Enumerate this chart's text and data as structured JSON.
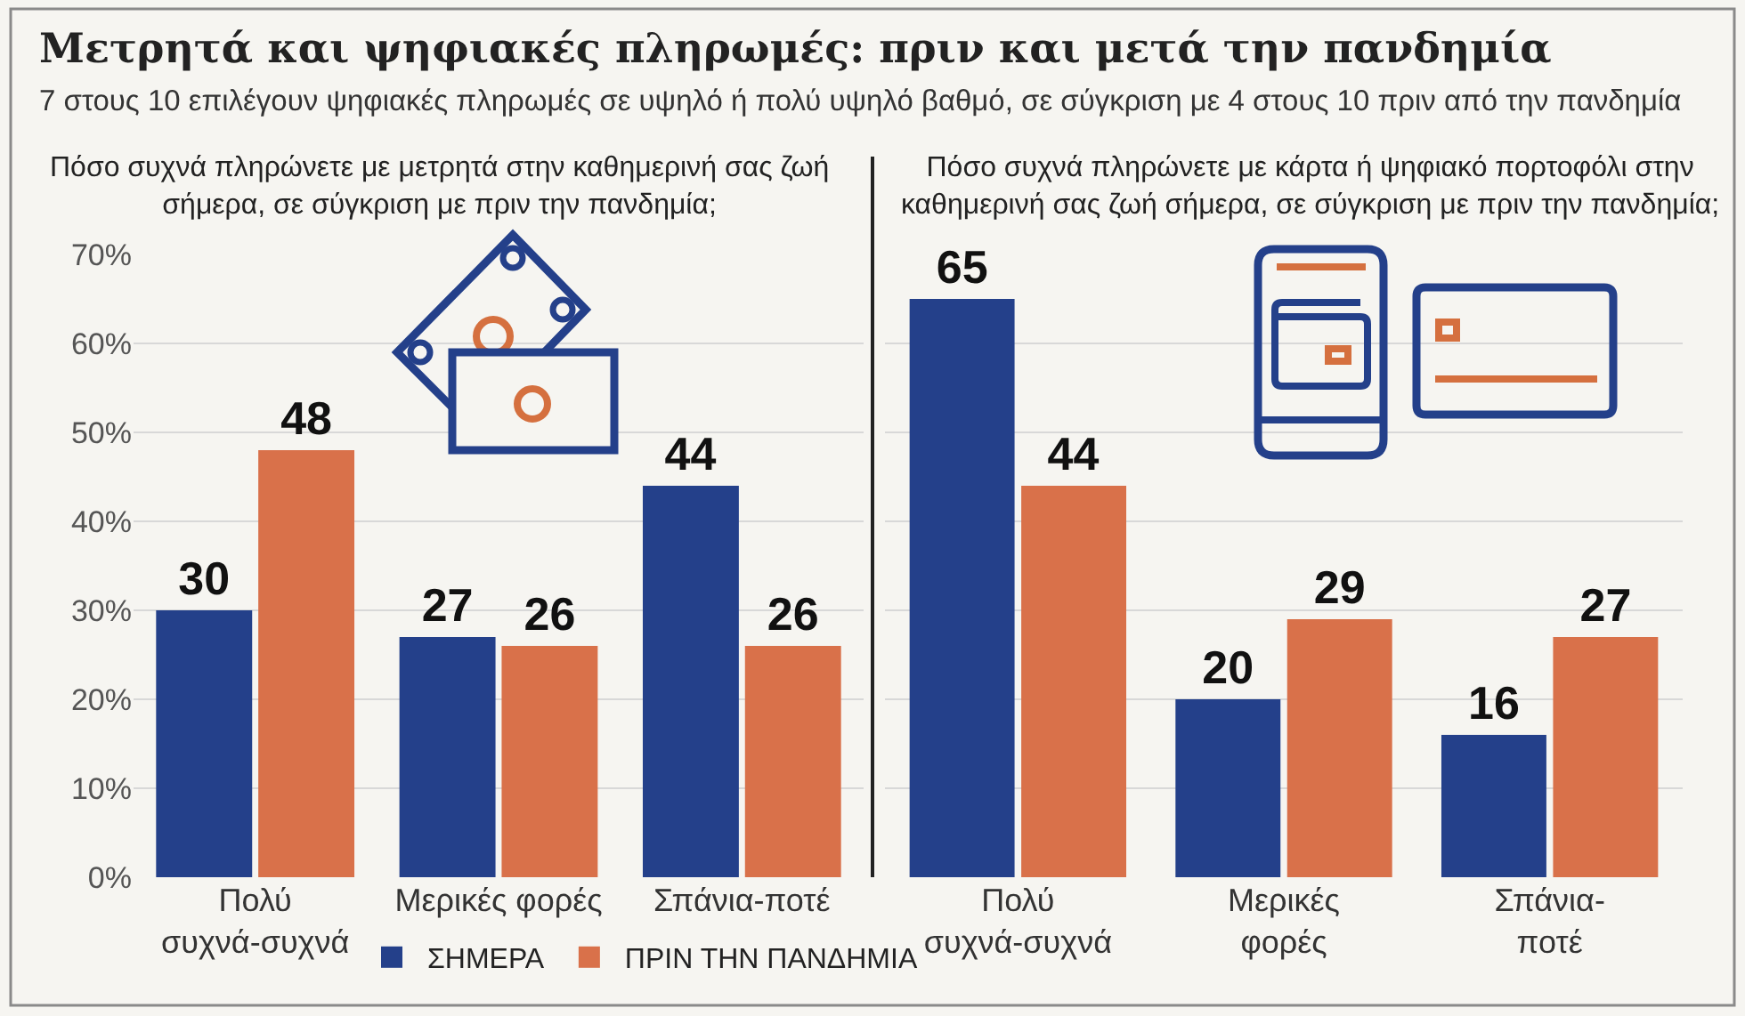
{
  "chart_data": [
    {
      "type": "other",
      "title": "Μετρητά και ψηφιακές πληρωμές: πριν και μετά την πανδημία",
      "subtitle": "7 στους 10 επιλέγουν ψηφιακές πληρωμές σε υψηλό ή πολύ υψηλό βαθμό, σε σύγκριση με 4 στους 10 πριν από την πανδημία"
    },
    {
      "type": "bar",
      "title": "Πόσο συχνά πληρώνετε με μετρητά στην καθημερινή σας ζωή\nσήμερα, σε σύγκριση με πριν την πανδημία;",
      "categories": [
        "Πολύ\nσυχνά-συχνά",
        "Μερικές φορές",
        "Σπάνια-ποτέ"
      ],
      "series": [
        {
          "name": "ΣΗΜΕΡΑ",
          "color": "#24408a",
          "values": [
            30,
            27,
            44
          ]
        },
        {
          "name": "ΠΡΙΝ ΤΗΝ ΠΑΝΔΗΜΙΑ",
          "color": "#d9714a",
          "values": [
            48,
            26,
            26
          ]
        }
      ],
      "ylim": [
        0,
        70
      ],
      "yticks": [
        {
          "value": 0,
          "label": "0%"
        },
        {
          "value": 10,
          "label": "10%"
        },
        {
          "value": 20,
          "label": "20%"
        },
        {
          "value": 30,
          "label": "30%"
        },
        {
          "value": 40,
          "label": "40%"
        },
        {
          "value": 50,
          "label": "50%"
        },
        {
          "value": 60,
          "label": "60%"
        },
        {
          "value": 70,
          "label": "70%"
        }
      ],
      "grid": "y",
      "legend": "bottom",
      "data_labels": true
    },
    {
      "type": "bar",
      "title": "Πόσο συχνά πληρώνετε με κάρτα ή ψηφιακό πορτοφόλι στην\nκαθημερινή σας ζωή σήμερα, σε σύγκριση με πριν την πανδημία;",
      "categories": [
        "Πολύ\nσυχνά-συχνά",
        "Μερικές\nφορές",
        "Σπάνια-\nποτέ"
      ],
      "series": [
        {
          "color": "#24408a",
          "values": [
            65,
            20,
            16
          ]
        },
        {
          "color": "#d9714a",
          "values": [
            44,
            29,
            27
          ]
        }
      ],
      "ylim": [
        0,
        70
      ],
      "yticks": [
        {
          "value": 0,
          "label": null
        },
        {
          "value": 10,
          "label": null
        },
        {
          "value": 20,
          "label": null
        },
        {
          "value": 30,
          "label": null
        },
        {
          "value": 40,
          "label": null
        },
        {
          "value": 50,
          "label": null
        },
        {
          "value": 60,
          "label": null
        },
        {
          "value": 70,
          "label": null
        }
      ],
      "grid": "y",
      "tick_labels": "x",
      "data_labels": true
    }
  ]
}
